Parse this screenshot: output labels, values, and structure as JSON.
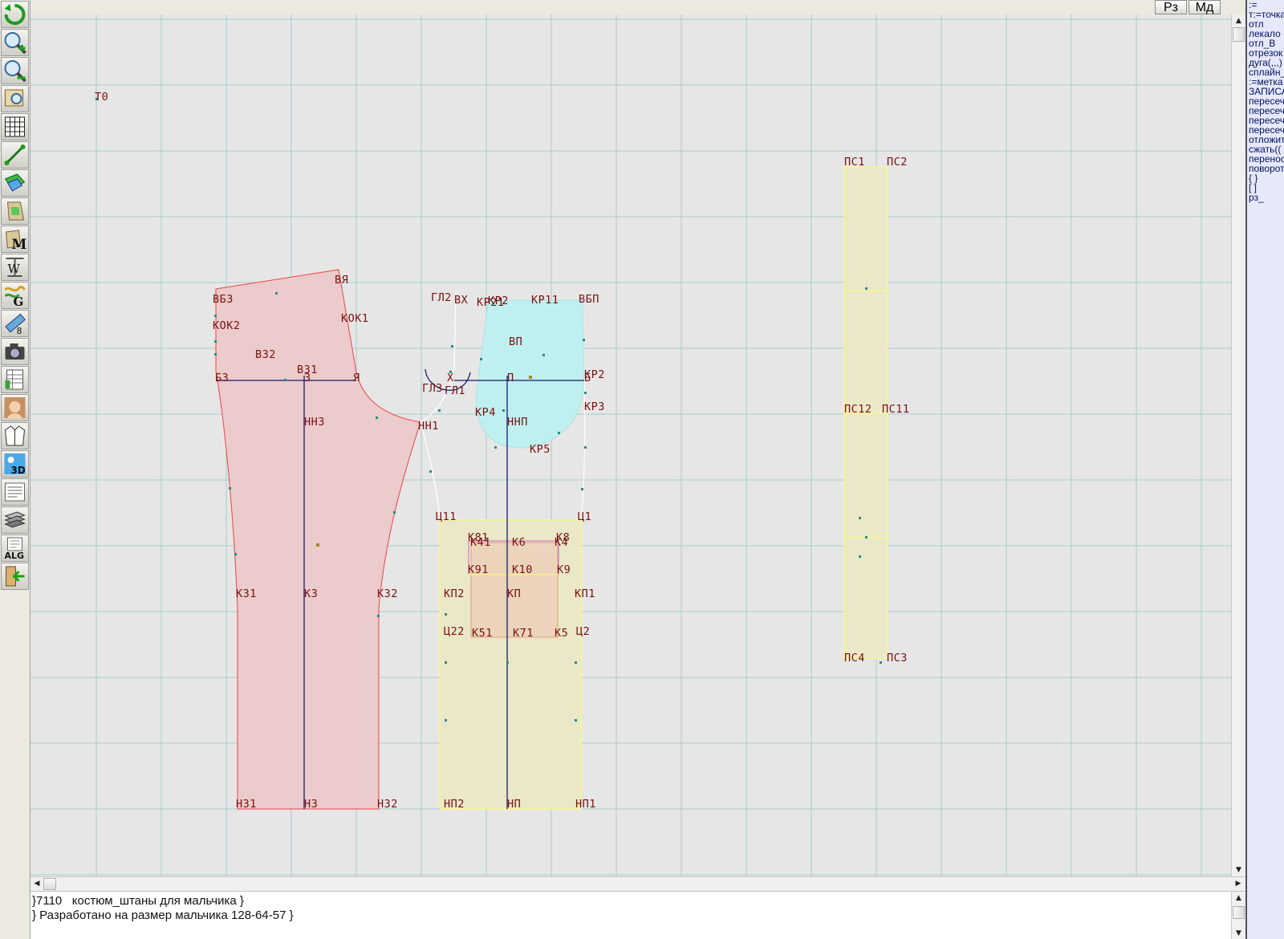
{
  "top_buttons": {
    "rz": "Рз",
    "md": "Мд"
  },
  "toolbar": {
    "icons": [
      "undo-icon",
      "zoom-in-icon",
      "zoom-out-icon",
      "zoom-area-icon",
      "grid-icon",
      "line-tool-icon",
      "layers-icon",
      "pattern-piece-icon",
      "m-tool-icon",
      "w-tool-icon",
      "g-tool-icon",
      "measure-icon",
      "camera-icon",
      "table-icon",
      "portrait-icon",
      "jacket-icon",
      "3d-icon",
      "text-doc-icon",
      "library-icon",
      "alg-icon",
      "exit-icon"
    ]
  },
  "drawing": {
    "labels": {
      "t0": "Т0",
      "bb3": "ВБ3",
      "bya": "ВЯ",
      "kok2": "КОК2",
      "kok1": "КОК1",
      "bz2": "ВЗ2",
      "bz1": "ВЗ1",
      "b3": "Б3",
      "z": "З",
      "ya": "Я",
      "nn3": "НН3",
      "hn1": "НН1",
      "k31": "К31",
      "k3": "К3",
      "k32": "К32",
      "n31": "Н31",
      "n3": "Н3",
      "n32": "Н32",
      "gl2": "ГЛ2",
      "bx": "ВХ",
      "kp2": "КР2",
      "kp21": "КР21",
      "kp11": "КР11",
      "bbp": "ВБП",
      "bp": "ВП",
      "gl3": "ГЛ3",
      "gl1": "ГЛ1",
      "x": "Х",
      "p": "П",
      "b": "Б",
      "kr2": "КР2",
      "kp3": "КР3",
      "kp4": "КР4",
      "nnp": "ННП",
      "kp5": "КР5",
      "ts11": "Ц11",
      "ts1": "Ц1",
      "k81": "К81",
      "k41": "К41",
      "k6": "К6",
      "k8": "К8",
      "k4": "К4",
      "k91": "К91",
      "k10": "К10",
      "k9": "К9",
      "kp2b": "КП2",
      "kp": "КП",
      "kp1": "КП1",
      "ts22": "Ц22",
      "k51": "К51",
      "k71": "К71",
      "k5": "К5",
      "ts2": "Ц2",
      "np2": "НП2",
      "np": "НП",
      "np1": "НП1",
      "ps1": "ПС1",
      "ps2": "ПС2",
      "ps12": "ПС12",
      "ps11": "ПС11",
      "ps4": "ПС4",
      "ps3": "ПС3"
    }
  },
  "console": {
    "line1": "}7110   костюм_штаны для мальчика }",
    "line2": "} Разработано на размер мальчика 128-64-57 }"
  },
  "right_panel": {
    "commands": [
      ":=",
      "т:=точка",
      "отл",
      "лекало",
      "отл_В",
      "отрезок",
      "дуга(,,,)",
      "сплайн_",
      ":=метка",
      "ЗАПИСА",
      "пересеч",
      "пересеч",
      "пересеч",
      "пересеч",
      "отложит",
      "сжать((",
      "перенос",
      "поворот",
      "{ }",
      "[ ]",
      "рз_"
    ]
  },
  "colors": {
    "canvas": "#e6e6e6",
    "grid": "#a8cccc",
    "back_piece_fill": "#ebcbcb",
    "back_piece_stroke": "#ee4444",
    "pocket_fill": "#bff0f0",
    "yellow_fill": "#eae8c9",
    "yellow_stroke": "#ffff66",
    "navy_line": "#1a1a6e",
    "label": "#7a1010"
  }
}
